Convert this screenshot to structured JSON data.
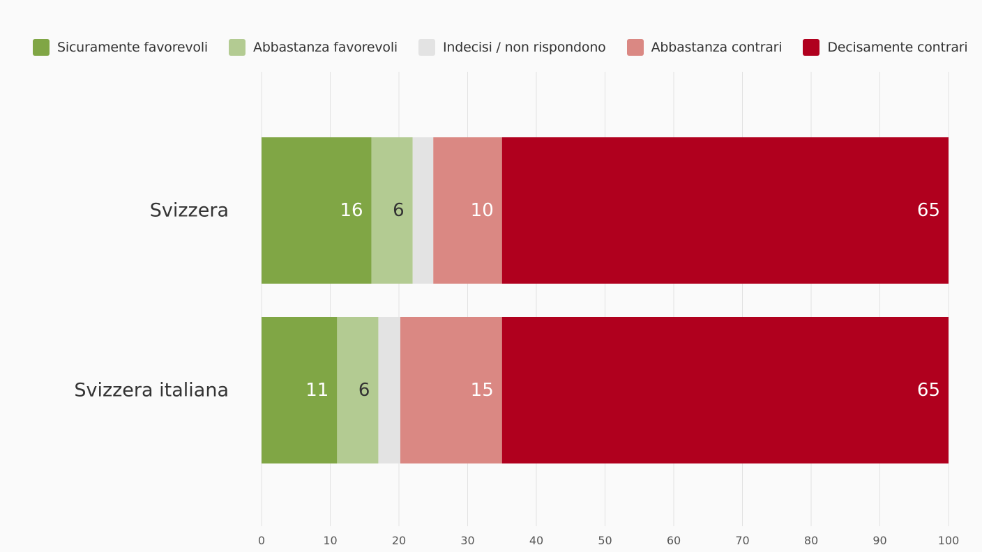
{
  "chart_data": {
    "type": "bar",
    "orientation": "horizontal",
    "stacked": true,
    "categories": [
      "Svizzera",
      "Svizzera italiana"
    ],
    "series": [
      {
        "name": "Sicuramente favorevoli",
        "color": "#80a645",
        "values": [
          16,
          11
        ],
        "labels": [
          "16",
          "11"
        ],
        "label_color": "#ffffff"
      },
      {
        "name": "Abbastanza favorevoli",
        "color": "#b3cb92",
        "values": [
          6,
          6
        ],
        "labels": [
          "6",
          "6"
        ],
        "label_color": "#333333"
      },
      {
        "name": "Indecisi / non rispondono",
        "color": "#e3e3e3",
        "values": [
          3,
          3.2
        ],
        "labels": [
          "",
          ""
        ],
        "label_color": "#333333"
      },
      {
        "name": "Abbastanza contrari",
        "color": "#da8883",
        "values": [
          10,
          14.8
        ],
        "labels": [
          "10",
          "15"
        ],
        "label_color": "#ffffff"
      },
      {
        "name": "Decisamente contrari",
        "color": "#b0001e",
        "values": [
          65,
          65
        ],
        "labels": [
          "65",
          "65"
        ],
        "label_color": "#ffffff"
      }
    ],
    "xlim": [
      0,
      100
    ],
    "xticks": [
      "0",
      "10",
      "20",
      "30",
      "40",
      "50",
      "60",
      "70",
      "80",
      "90",
      "100"
    ],
    "grid": true,
    "legend_position": "top-left",
    "title": "",
    "xlabel": "",
    "ylabel": ""
  }
}
